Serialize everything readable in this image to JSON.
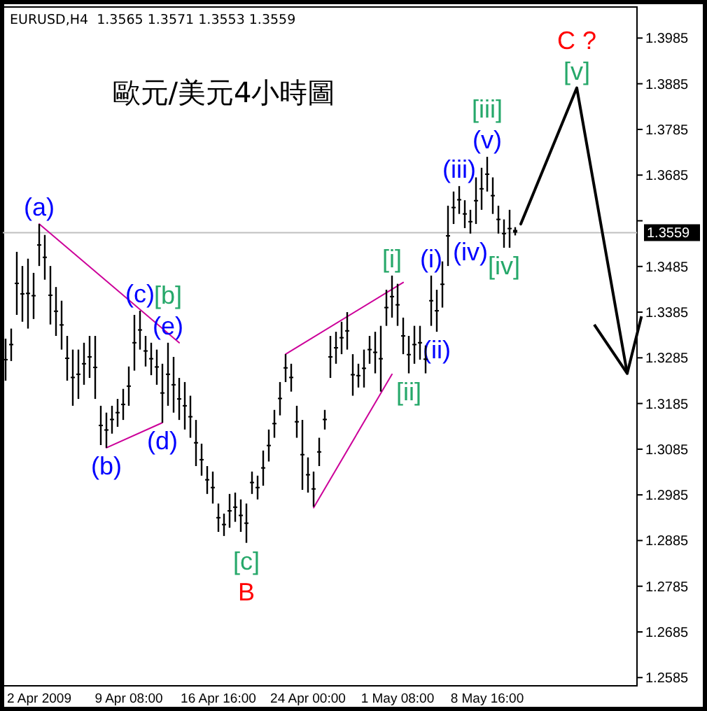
{
  "chart_data": {
    "type": "candlestick",
    "title": "歐元/美元4小時圖",
    "color": "#000000",
    "categories": [
      null,
      null,
      null,
      null,
      null,
      null,
      "2 Apr 2009",
      null,
      null,
      null,
      null,
      null,
      null,
      null,
      null,
      null,
      null,
      null,
      null,
      null,
      null,
      null,
      "9 Apr 08:00",
      null,
      null,
      null,
      null,
      null,
      null,
      null,
      null,
      null,
      null,
      null,
      null,
      null,
      null,
      null,
      "16 Apr 16:00",
      null,
      null,
      null,
      null,
      null,
      null,
      null,
      null,
      null,
      null,
      null,
      null,
      null,
      null,
      null,
      "24 Apr 00:00",
      null,
      null,
      null,
      null,
      null,
      null,
      null,
      null,
      null,
      null,
      null,
      null,
      null,
      null,
      null,
      "1 May 08:00",
      null,
      null,
      null,
      null,
      null,
      null,
      null,
      null,
      null,
      null,
      null,
      null,
      null,
      null,
      null,
      "8 May 16:00",
      null,
      null,
      null,
      null,
      null,
      null,
      null,
      null,
      null,
      null,
      null,
      null,
      null,
      null,
      null,
      null,
      null,
      null,
      null,
      null,
      null,
      null,
      null,
      null,
      null,
      null
    ],
    "ohlc": [
      [
        1.3281,
        1.3327,
        1.3235,
        1.3281
      ],
      [
        1.3314,
        1.3349,
        1.3278,
        1.3314
      ],
      [
        1.3448,
        1.3517,
        1.3379,
        1.3448
      ],
      [
        1.3425,
        1.3486,
        1.3364,
        1.3425
      ],
      [
        1.3426,
        1.3502,
        1.3349,
        1.3426
      ],
      [
        1.3421,
        1.3471,
        1.337,
        1.3421
      ],
      [
        1.3532,
        1.3578,
        1.3486,
        1.3532
      ],
      [
        1.3505,
        1.3554,
        1.3456,
        1.3505
      ],
      [
        1.3422,
        1.3486,
        1.3358,
        1.3422
      ],
      [
        1.3387,
        1.344,
        1.3333,
        1.3387
      ],
      [
        1.3357,
        1.341,
        1.3303,
        1.3357
      ],
      [
        1.3284,
        1.3333,
        1.3235,
        1.3284
      ],
      [
        1.3242,
        1.3303,
        1.318,
        1.3242
      ],
      [
        1.3249,
        1.3303,
        1.3195,
        1.3249
      ],
      [
        1.3272,
        1.3318,
        1.3226,
        1.3272
      ],
      [
        1.3287,
        1.3333,
        1.3241,
        1.3287
      ],
      [
        1.3264,
        1.3333,
        1.3195,
        1.3264
      ],
      [
        1.3137,
        1.318,
        1.3094,
        1.3137
      ],
      [
        1.3127,
        1.3165,
        1.3088,
        1.3127
      ],
      [
        1.315,
        1.318,
        1.3119,
        1.315
      ],
      [
        1.3165,
        1.3195,
        1.3134,
        1.3165
      ],
      [
        1.3183,
        1.3217,
        1.3149,
        1.3183
      ],
      [
        1.3223,
        1.3266,
        1.318,
        1.3223
      ],
      [
        1.3318,
        1.3379,
        1.3257,
        1.3318
      ],
      [
        1.3346,
        1.3388,
        1.3303,
        1.3346
      ],
      [
        1.33,
        1.3333,
        1.3266,
        1.33
      ],
      [
        1.3283,
        1.3318,
        1.3247,
        1.3283
      ],
      [
        1.3265,
        1.3303,
        1.3226,
        1.3265
      ],
      [
        1.3208,
        1.3272,
        1.3143,
        1.3208
      ],
      [
        1.3249,
        1.3318,
        1.318,
        1.3249
      ],
      [
        1.3226,
        1.3287,
        1.3165,
        1.3226
      ],
      [
        1.3195,
        1.3241,
        1.3149,
        1.3195
      ],
      [
        1.318,
        1.3232,
        1.3128,
        1.318
      ],
      [
        1.3156,
        1.3202,
        1.311,
        1.3156
      ],
      [
        1.3099,
        1.3149,
        1.3048,
        1.3099
      ],
      [
        1.3062,
        1.3097,
        1.3027,
        1.3062
      ],
      [
        1.3018,
        1.3048,
        1.2987,
        1.3018
      ],
      [
        1.3001,
        1.3036,
        1.2966,
        1.3001
      ],
      [
        1.2935,
        1.2966,
        1.2904,
        1.2935
      ],
      [
        1.292,
        1.2944,
        1.2895,
        1.292
      ],
      [
        1.295,
        1.2987,
        1.2913,
        1.295
      ],
      [
        1.2958,
        1.299,
        1.2926,
        1.2958
      ],
      [
        1.294,
        1.2975,
        1.2904,
        1.294
      ],
      [
        1.2923,
        1.2966,
        1.288,
        1.2923
      ],
      [
        1.3012,
        1.3036,
        1.2987,
        1.3012
      ],
      [
        1.3001,
        1.3027,
        1.2975,
        1.3001
      ],
      [
        1.3044,
        1.3082,
        1.3005,
        1.3044
      ],
      [
        1.3093,
        1.3128,
        1.3058,
        1.3093
      ],
      [
        1.3141,
        1.3171,
        1.311,
        1.3141
      ],
      [
        1.3196,
        1.3232,
        1.3159,
        1.3196
      ],
      [
        1.3263,
        1.3293,
        1.3232,
        1.3263
      ],
      [
        1.3242,
        1.3272,
        1.3211,
        1.3242
      ],
      [
        1.3145,
        1.318,
        1.311,
        1.3145
      ],
      [
        1.3073,
        1.3149,
        1.2996,
        1.3073
      ],
      [
        1.3029,
        1.3067,
        1.299,
        1.3029
      ],
      [
        1.2998,
        1.3036,
        1.2959,
        1.2998
      ],
      [
        1.3079,
        1.311,
        1.3048,
        1.3079
      ],
      [
        1.315,
        1.3171,
        1.3128,
        1.315
      ],
      [
        1.3287,
        1.3333,
        1.3241,
        1.3287
      ],
      [
        1.3307,
        1.3342,
        1.3272,
        1.3307
      ],
      [
        1.3329,
        1.3364,
        1.3293,
        1.3329
      ],
      [
        1.3344,
        1.3385,
        1.3303,
        1.3344
      ],
      [
        1.3248,
        1.3293,
        1.3202,
        1.3248
      ],
      [
        1.3246,
        1.3272,
        1.322,
        1.3246
      ],
      [
        1.3262,
        1.3303,
        1.322,
        1.3262
      ],
      [
        1.3303,
        1.3333,
        1.3272,
        1.3303
      ],
      [
        1.3297,
        1.3342,
        1.3251,
        1.3297
      ],
      [
        1.3283,
        1.3355,
        1.3211,
        1.3283
      ],
      [
        1.3395,
        1.3434,
        1.3355,
        1.3395
      ],
      [
        1.3419,
        1.3465,
        1.3373,
        1.3419
      ],
      [
        1.3401,
        1.3447,
        1.3355,
        1.3401
      ],
      [
        1.3333,
        1.3373,
        1.3293,
        1.3333
      ],
      [
        1.3292,
        1.3333,
        1.3251,
        1.3292
      ],
      [
        1.3314,
        1.3355,
        1.3272,
        1.3314
      ],
      [
        1.3318,
        1.3355,
        1.3281,
        1.3318
      ],
      [
        1.3282,
        1.3312,
        1.3251,
        1.3282
      ],
      [
        1.341,
        1.3465,
        1.3355,
        1.341
      ],
      [
        1.3388,
        1.3434,
        1.3342,
        1.3388
      ],
      [
        1.3446,
        1.3496,
        1.3395,
        1.3446
      ],
      [
        1.3552,
        1.3618,
        1.3486,
        1.3552
      ],
      [
        1.3614,
        1.3649,
        1.3578,
        1.3614
      ],
      [
        1.3631,
        1.3661,
        1.36,
        1.3631
      ],
      [
        1.36,
        1.363,
        1.3569,
        1.36
      ],
      [
        1.3583,
        1.3609,
        1.3557,
        1.3583
      ],
      [
        1.3629,
        1.368,
        1.3578,
        1.3629
      ],
      [
        1.3655,
        1.3701,
        1.3609,
        1.3655
      ],
      [
        1.3687,
        1.3725,
        1.3649,
        1.3687
      ],
      [
        1.364,
        1.368,
        1.36,
        1.364
      ],
      [
        1.3588,
        1.3618,
        1.3557,
        1.3588
      ],
      [
        1.3557,
        1.3588,
        1.3526,
        1.3557
      ],
      [
        1.3568,
        1.3609,
        1.3526,
        1.3568
      ],
      [
        1.3565,
        1.3571,
        1.3553,
        1.3559
      ],
      null,
      null,
      null,
      null,
      null,
      null,
      null,
      null,
      null,
      null,
      null,
      null,
      null,
      null,
      null,
      null,
      null,
      null,
      null,
      null,
      null
    ],
    "value_labels": [
      null,
      null,
      null,
      null,
      null,
      null,
      "(a)",
      null,
      null,
      null,
      null,
      null,
      null,
      null,
      null,
      null,
      null,
      null,
      "(b)",
      null,
      null,
      null,
      null,
      null,
      "(c)",
      null,
      null,
      null,
      "(d)",
      "[b]\n(e)",
      null,
      null,
      null,
      null,
      null,
      null,
      null,
      null,
      null,
      null,
      null,
      null,
      null,
      "[c]\nB",
      null,
      null,
      null,
      null,
      null,
      null,
      null,
      null,
      null,
      null,
      null,
      null,
      null,
      null,
      null,
      null,
      null,
      null,
      null,
      null,
      null,
      null,
      null,
      null,
      null,
      "[i]",
      null,
      null,
      "[ii]",
      null,
      null,
      null,
      "(i)",
      "(ii)",
      null,
      null,
      null,
      "(iii)",
      null,
      "(iv)",
      null,
      null,
      "[iii]\n(v)",
      null,
      null,
      "[iv]",
      null,
      null,
      null,
      null,
      null,
      null,
      null,
      null,
      null,
      null,
      null,
      null,
      null,
      null,
      null,
      null,
      null,
      null,
      null,
      null,
      null,
      null,
      null
    ],
    "series": [
      {
        "type": "line",
        "color": "#000000",
        "values": [
          null,
          null,
          null,
          null,
          null,
          null,
          null,
          null,
          null,
          null,
          null,
          null,
          null,
          null,
          null,
          null,
          null,
          null,
          null,
          null,
          null,
          null,
          null,
          null,
          null,
          null,
          null,
          null,
          null,
          null,
          null,
          null,
          null,
          null,
          null,
          null,
          null,
          null,
          null,
          null,
          null,
          null,
          null,
          null,
          null,
          null,
          null,
          null,
          null,
          null,
          null,
          null,
          null,
          null,
          null,
          null,
          null,
          null,
          null,
          null,
          null,
          null,
          null,
          null,
          null,
          null,
          null,
          null,
          null,
          null,
          null,
          null,
          null,
          null,
          null,
          null,
          null,
          null,
          null,
          null,
          null,
          null,
          null,
          null,
          null,
          null,
          null,
          null,
          null,
          null,
          null,
          null,
          1.3578,
          null,
          null,
          null,
          null,
          null,
          null,
          null,
          null,
          null,
          1.3876,
          null,
          null,
          null,
          null,
          null,
          null,
          null,
          null,
          1.3251,
          null
        ],
        "value_labels": [
          null,
          null,
          null,
          null,
          null,
          null,
          null,
          null,
          null,
          null,
          null,
          null,
          null,
          null,
          null,
          null,
          null,
          null,
          null,
          null,
          null,
          null,
          null,
          null,
          null,
          null,
          null,
          null,
          null,
          null,
          null,
          null,
          null,
          null,
          null,
          null,
          null,
          null,
          null,
          null,
          null,
          null,
          null,
          null,
          null,
          null,
          null,
          null,
          null,
          null,
          null,
          null,
          null,
          null,
          null,
          null,
          null,
          null,
          null,
          null,
          null,
          null,
          null,
          null,
          null,
          null,
          null,
          null,
          null,
          null,
          null,
          null,
          null,
          null,
          null,
          null,
          null,
          null,
          null,
          null,
          null,
          null,
          null,
          null,
          null,
          null,
          null,
          null,
          null,
          null,
          null,
          null,
          null,
          null,
          null,
          null,
          null,
          null,
          null,
          null,
          null,
          null,
          "C ?\n[v]",
          null,
          null,
          null,
          null,
          null,
          null,
          null,
          null,
          null,
          null
        ]
      },
      {
        "type": "line",
        "color": "#cc0099",
        "values": [
          null,
          null,
          null,
          null,
          null,
          null,
          1.3578,
          null,
          null,
          null,
          null,
          null,
          null,
          null,
          null,
          null,
          null,
          null,
          null,
          null,
          null,
          null,
          null,
          null,
          null,
          null,
          null,
          null,
          null,
          null,
          null,
          1.3318,
          null,
          null,
          null,
          null,
          null,
          null,
          null,
          null,
          null,
          null,
          null,
          null,
          null,
          null,
          null,
          null,
          null,
          null,
          null,
          null,
          null,
          null,
          null,
          null,
          null,
          null,
          null,
          null,
          null,
          null,
          null,
          null,
          null,
          null,
          null,
          null,
          null,
          null,
          null,
          null,
          null,
          null,
          null,
          null,
          null,
          null,
          null,
          null,
          null,
          null,
          null,
          null,
          null,
          null,
          null,
          null,
          null,
          null,
          null,
          null,
          null,
          null,
          null,
          null,
          null,
          null,
          null,
          null,
          null,
          null,
          null,
          null,
          null,
          null,
          null,
          null,
          null,
          null,
          null,
          null,
          null
        ]
      },
      {
        "type": "line",
        "color": "#cc0099",
        "values": [
          null,
          null,
          null,
          null,
          null,
          null,
          null,
          null,
          null,
          null,
          null,
          null,
          null,
          null,
          null,
          null,
          null,
          null,
          1.3088,
          null,
          null,
          null,
          null,
          null,
          null,
          null,
          null,
          null,
          1.3143,
          null,
          null,
          null,
          null,
          null,
          null,
          null,
          null,
          null,
          null,
          null,
          null,
          null,
          null,
          null,
          null,
          null,
          null,
          null,
          null,
          null,
          null,
          null,
          null,
          null,
          null,
          null,
          null,
          null,
          null,
          null,
          null,
          null,
          null,
          null,
          null,
          null,
          null,
          null,
          null,
          null,
          null,
          null,
          null,
          null,
          null,
          null,
          null,
          null,
          null,
          null,
          null,
          null,
          null,
          null,
          null,
          null,
          null,
          null,
          null,
          null,
          null,
          null,
          null,
          null,
          null,
          null,
          null,
          null,
          null,
          null,
          null,
          null,
          null,
          null,
          null,
          null,
          null,
          null,
          null,
          null,
          null,
          null,
          null
        ]
      },
      {
        "type": "line",
        "color": "#cc0099",
        "values": [
          null,
          null,
          null,
          null,
          null,
          null,
          null,
          null,
          null,
          null,
          null,
          null,
          null,
          null,
          null,
          null,
          null,
          null,
          null,
          null,
          null,
          null,
          null,
          null,
          null,
          null,
          null,
          null,
          null,
          null,
          null,
          null,
          null,
          null,
          null,
          null,
          null,
          null,
          null,
          null,
          null,
          null,
          null,
          null,
          null,
          null,
          null,
          null,
          null,
          null,
          1.3293,
          null,
          null,
          null,
          null,
          null,
          null,
          null,
          null,
          null,
          null,
          null,
          null,
          null,
          null,
          null,
          null,
          null,
          null,
          null,
          null,
          1.345,
          null,
          null,
          null,
          null,
          null,
          null,
          null,
          null,
          null,
          null,
          null,
          null,
          null,
          null,
          null,
          null,
          null,
          null,
          null,
          null,
          null,
          null,
          null,
          null,
          null,
          null,
          null,
          null,
          null,
          null,
          null,
          null,
          null,
          null,
          null,
          null,
          null,
          null,
          null,
          null,
          null
        ]
      },
      {
        "type": "line",
        "color": "#cc0099",
        "values": [
          null,
          null,
          null,
          null,
          null,
          null,
          null,
          null,
          null,
          null,
          null,
          null,
          null,
          null,
          null,
          null,
          null,
          null,
          null,
          null,
          null,
          null,
          null,
          null,
          null,
          null,
          null,
          null,
          null,
          null,
          null,
          null,
          null,
          null,
          null,
          null,
          null,
          null,
          null,
          null,
          null,
          null,
          null,
          null,
          null,
          null,
          null,
          null,
          null,
          null,
          null,
          null,
          null,
          null,
          null,
          1.2957,
          null,
          null,
          null,
          null,
          null,
          null,
          null,
          null,
          null,
          null,
          null,
          null,
          null,
          1.3249,
          null,
          null,
          null,
          null,
          null,
          null,
          null,
          null,
          null,
          null,
          null,
          null,
          null,
          null,
          null,
          null,
          null,
          null,
          null,
          null,
          null,
          null,
          null,
          null,
          null,
          null,
          null,
          null,
          null,
          null,
          null,
          null,
          null,
          null,
          null,
          null,
          null,
          null,
          null,
          null,
          null,
          null,
          null
        ]
      }
    ],
    "ylim": [
      1.2567,
      1.4053
    ],
    "yticks": [
      1.2585,
      1.2685,
      1.2785,
      1.2885,
      1.2985,
      1.3085,
      1.3185,
      1.3285,
      1.3385,
      1.3485,
      {
        "value": 1.3585,
        "label": null
      },
      1.3685,
      1.3785,
      1.3885,
      1.3985
    ],
    "ref_lines": [
      {
        "axis": "y",
        "value": 1.3559,
        "label": "1.3559",
        "color": "#c0c0c0"
      }
    ],
    "annotations": [
      "EURUSD,H4  1.3565 1.3571 1.3553 1.3559"
    ]
  }
}
